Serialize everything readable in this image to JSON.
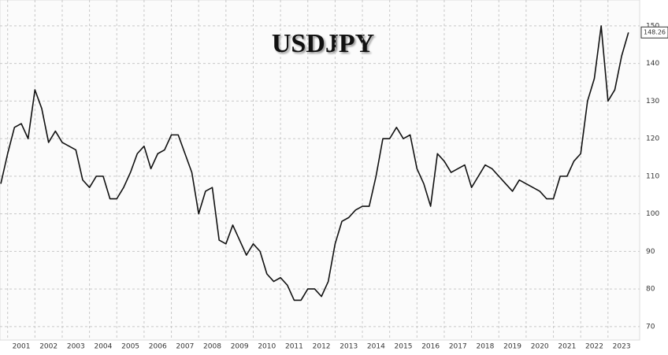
{
  "chart_data": {
    "type": "line",
    "title": "USDJPY",
    "x": [
      2000.75,
      2001,
      2001.25,
      2001.5,
      2001.75,
      2002,
      2002.25,
      2002.5,
      2002.75,
      2003,
      2003.25,
      2003.5,
      2003.75,
      2004,
      2004.25,
      2004.5,
      2004.75,
      2005,
      2005.25,
      2005.5,
      2005.75,
      2006,
      2006.25,
      2006.5,
      2006.75,
      2007,
      2007.25,
      2007.5,
      2007.75,
      2008,
      2008.25,
      2008.5,
      2008.75,
      2009,
      2009.25,
      2009.5,
      2009.75,
      2010,
      2010.25,
      2010.5,
      2010.75,
      2011,
      2011.25,
      2011.5,
      2011.75,
      2012,
      2012.25,
      2012.5,
      2012.75,
      2013,
      2013.25,
      2013.5,
      2013.75,
      2014,
      2014.25,
      2014.5,
      2014.75,
      2015,
      2015.25,
      2015.5,
      2015.75,
      2016,
      2016.25,
      2016.5,
      2016.75,
      2017,
      2017.25,
      2017.5,
      2017.75,
      2018,
      2018.25,
      2018.5,
      2018.75,
      2019,
      2019.25,
      2019.5,
      2019.75,
      2020,
      2020.25,
      2020.5,
      2020.75,
      2021,
      2021.25,
      2021.5,
      2021.75,
      2022,
      2022.25,
      2022.5,
      2022.75,
      2023,
      2023.25,
      2023.5,
      2023.75
    ],
    "values": [
      108,
      116,
      123,
      124,
      120,
      133,
      128,
      119,
      122,
      119,
      118,
      117,
      109,
      107,
      110,
      110,
      104,
      104,
      107,
      111,
      116,
      118,
      112,
      116,
      117,
      121,
      121,
      116,
      111,
      100,
      106,
      107,
      93,
      92,
      97,
      93,
      89,
      92,
      90,
      84,
      82,
      83,
      81,
      77,
      77,
      80,
      80,
      78,
      82,
      92,
      98,
      99,
      101,
      102,
      102,
      110,
      120,
      120,
      123,
      120,
      121,
      112,
      108,
      102,
      116,
      114,
      111,
      112,
      113,
      107,
      110,
      113,
      112,
      110,
      108,
      106,
      109,
      108,
      107,
      106,
      104,
      104,
      110,
      110,
      114,
      116,
      130,
      136,
      150,
      130,
      133,
      142,
      148.26
    ],
    "color": "#111111",
    "xlim": [
      2000.72,
      2024.16
    ],
    "xticks": [
      2001,
      2002,
      2003,
      2004,
      2005,
      2006,
      2007,
      2008,
      2009,
      2010,
      2011,
      2012,
      2013,
      2014,
      2015,
      2016,
      2017,
      2018,
      2019,
      2020,
      2021,
      2022,
      2023
    ],
    "ylim": [
      66.4,
      156.9
    ],
    "yticks": [
      70,
      80,
      90,
      100,
      110,
      120,
      130,
      140,
      150
    ],
    "grid": true
  }
}
